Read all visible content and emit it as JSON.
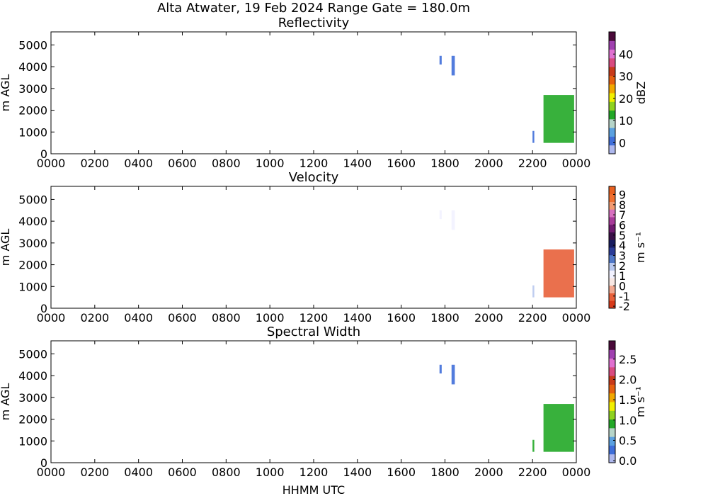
{
  "figure": {
    "title": "Alta Atwater, 19 Feb 2024 Range Gate = 180.0m",
    "xlabel": "HHMM UTC"
  },
  "chart_data": [
    {
      "type": "heatmap",
      "title": "Reflectivity",
      "ylabel": "m AGL",
      "xticks": [
        "0000",
        "0200",
        "0400",
        "0600",
        "0800",
        "1000",
        "1200",
        "1400",
        "1600",
        "1800",
        "2000",
        "2200",
        "0000"
      ],
      "yticks": [
        "0",
        "1000",
        "2000",
        "3000",
        "4000",
        "5000"
      ],
      "xlim_hours": [
        0,
        24
      ],
      "ylim": [
        0,
        5600
      ],
      "colorbar": {
        "label": "dBZ",
        "ticks": [
          "0",
          "10",
          "20",
          "30",
          "40"
        ],
        "tick_values": [
          0,
          10,
          20,
          30,
          40
        ],
        "range": [
          -5,
          50
        ],
        "colors": [
          "#aeb8ee",
          "#3f6ed9",
          "#5aa0e0",
          "#b6d5c9",
          "#22a827",
          "#8fd21f",
          "#f2f000",
          "#f2a800",
          "#e66010",
          "#c83a1a",
          "#d94a80",
          "#e070d0",
          "#a040b0",
          "#4a0a3a"
        ]
      },
      "echoes": [
        {
          "t_start": 17.75,
          "t_end": 17.85,
          "h_bottom": 4100,
          "h_top": 4500,
          "level": 0.5
        },
        {
          "t_start": 18.3,
          "t_end": 18.45,
          "h_bottom": 3600,
          "h_top": 4500,
          "level": 0.6
        },
        {
          "t_start": 22.0,
          "t_end": 22.08,
          "h_bottom": 500,
          "h_top": 1050,
          "level": 2.5
        },
        {
          "t_start": 22.5,
          "t_end": 23.9,
          "h_bottom": 500,
          "h_top": 2700,
          "level": 14
        }
      ]
    },
    {
      "type": "heatmap",
      "title": "Velocity",
      "ylabel": "m AGL",
      "xticks": [
        "0000",
        "0200",
        "0400",
        "0600",
        "0800",
        "1000",
        "1200",
        "1400",
        "1600",
        "1800",
        "2000",
        "2200",
        "0000"
      ],
      "yticks": [
        "0",
        "1000",
        "2000",
        "3000",
        "4000",
        "5000"
      ],
      "xlim_hours": [
        0,
        24
      ],
      "ylim": [
        0,
        5600
      ],
      "colorbar": {
        "label": "m s⁻¹",
        "ticks": [
          "-2",
          "-1",
          "0",
          "1",
          "2",
          "3",
          "4",
          "5",
          "6",
          "7",
          "8",
          "9"
        ],
        "tick_values": [
          -2,
          -1,
          0,
          1,
          2,
          3,
          4,
          5,
          6,
          7,
          8,
          9
        ],
        "range": [
          -2.2,
          9.8
        ],
        "colors": [
          "#d83a1a",
          "#e8603a",
          "#f2a890",
          "#f8e8e4",
          "#f2f2ff",
          "#b8c8ee",
          "#5078c8",
          "#2a3c98",
          "#181c60",
          "#3a1048",
          "#701a70",
          "#a83a9a",
          "#d870c0",
          "#f29a70",
          "#f07030",
          "#e86020"
        ]
      },
      "echoes": [
        {
          "t_start": 17.75,
          "t_end": 17.85,
          "h_bottom": 4100,
          "h_top": 4500,
          "level": 1.5
        },
        {
          "t_start": 18.3,
          "t_end": 18.45,
          "h_bottom": 3600,
          "h_top": 4500,
          "level": 1.2
        },
        {
          "t_start": 22.0,
          "t_end": 22.08,
          "h_bottom": 500,
          "h_top": 1050,
          "level": 1.8
        },
        {
          "t_start": 22.5,
          "t_end": 23.9,
          "h_bottom": 500,
          "h_top": 2700,
          "level": -0.8
        }
      ]
    },
    {
      "type": "heatmap",
      "title": "Spectral Width",
      "ylabel": "m AGL",
      "xticks": [
        "0000",
        "0200",
        "0400",
        "0600",
        "0800",
        "1000",
        "1200",
        "1400",
        "1600",
        "1800",
        "2000",
        "2200",
        "0000"
      ],
      "yticks": [
        "0",
        "1000",
        "2000",
        "3000",
        "4000",
        "5000"
      ],
      "xlim_hours": [
        0,
        24
      ],
      "ylim": [
        0,
        5600
      ],
      "colorbar": {
        "label": "m s⁻¹",
        "ticks": [
          "0.0",
          "0.5",
          "1.0",
          "1.5",
          "2.0",
          "2.5"
        ],
        "tick_values": [
          0.0,
          0.5,
          1.0,
          1.5,
          2.0,
          2.5
        ],
        "range": [
          -0.05,
          2.95
        ],
        "colors": [
          "#aeb8ee",
          "#3f6ed9",
          "#5aa0e0",
          "#b6d5c9",
          "#22a827",
          "#8fd21f",
          "#f2f000",
          "#f2a800",
          "#e66010",
          "#c83a1a",
          "#d94a80",
          "#e070d0",
          "#a040b0",
          "#4a0a3a"
        ]
      },
      "echoes": [
        {
          "t_start": 17.75,
          "t_end": 17.85,
          "h_bottom": 4100,
          "h_top": 4500,
          "level": 0.3
        },
        {
          "t_start": 18.3,
          "t_end": 18.45,
          "h_bottom": 3600,
          "h_top": 4500,
          "level": 0.3
        },
        {
          "t_start": 22.0,
          "t_end": 22.08,
          "h_bottom": 500,
          "h_top": 1050,
          "level": 0.9
        },
        {
          "t_start": 22.5,
          "t_end": 23.9,
          "h_bottom": 500,
          "h_top": 2700,
          "level": 1.0
        }
      ]
    }
  ]
}
